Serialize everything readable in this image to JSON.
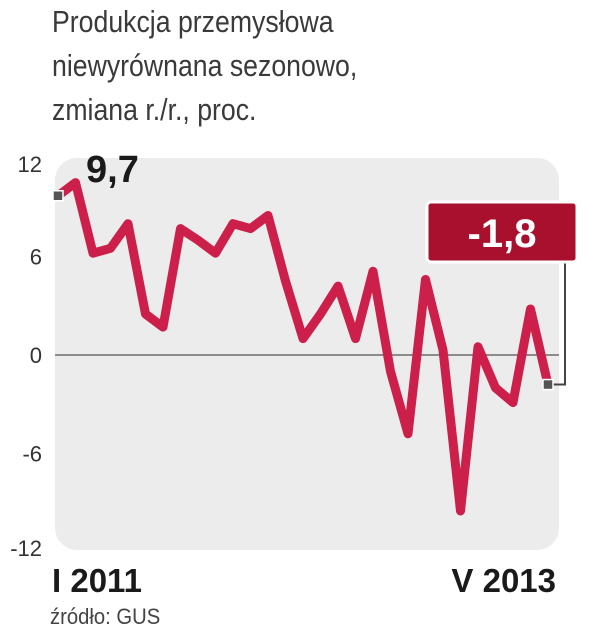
{
  "title_lines": [
    "Produkcja przemysłowa",
    "niewyrównana sezonowo,",
    "zmiana r./r., proc."
  ],
  "source": "źródło: GUS",
  "chart_data": {
    "type": "line",
    "title": "Produkcja przemysłowa niewyrównana sezonowo, zmiana r./r., proc.",
    "x_labels": [
      "I 2011",
      "V 2013"
    ],
    "y_ticks": [
      12,
      6,
      0,
      -6,
      -12
    ],
    "ylim": [
      -12,
      12
    ],
    "grid": false,
    "zero_line": true,
    "series": [
      {
        "values": [
          9.7,
          10.5,
          6.2,
          6.5,
          8.0,
          2.5,
          1.7,
          7.7,
          7.0,
          6.2,
          8.0,
          7.7,
          8.5,
          4.5,
          1.0,
          2.5,
          4.2,
          1.0,
          5.1,
          -1.0,
          -4.8,
          4.6,
          0.3,
          -9.5,
          0.5,
          -2.0,
          -2.9,
          2.8,
          -1.8
        ]
      }
    ],
    "annotations": [
      {
        "label": "9,7",
        "index": 0
      },
      {
        "label": "-1,8",
        "index": 28
      }
    ],
    "colors": {
      "line": "#cc1f4a",
      "plot_bg": "#ececec",
      "callout_bg": "#a8102e",
      "callout_text": "#ffffff",
      "zero_line": "#6b6b6b",
      "marker": "#555555"
    }
  }
}
